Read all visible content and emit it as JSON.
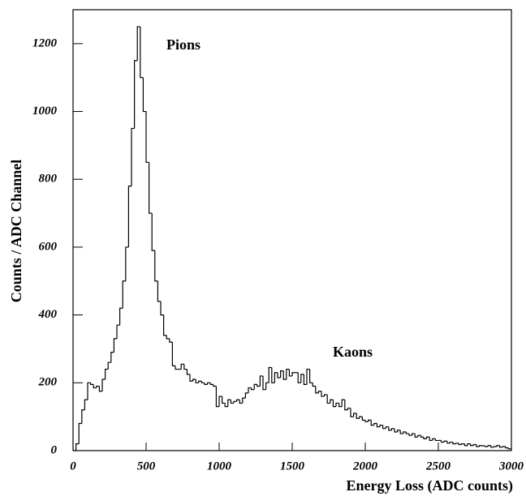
{
  "chart_data": {
    "type": "histogram",
    "x_label": "Energy Loss (ADC counts)",
    "y_label": "Counts / ADC Channel",
    "annotations": [
      {
        "text": "Pions"
      },
      {
        "text": "Kaons"
      }
    ],
    "color": "#000000",
    "bins": [
      0,
      20,
      40,
      60,
      80,
      100,
      120,
      140,
      160,
      180,
      200,
      220,
      240,
      260,
      280,
      300,
      320,
      340,
      360,
      380,
      400,
      420,
      440,
      460,
      480,
      500,
      520,
      540,
      560,
      580,
      600,
      620,
      640,
      660,
      680,
      700,
      720,
      740,
      760,
      780,
      800,
      820,
      840,
      860,
      880,
      900,
      920,
      940,
      960,
      980,
      1000,
      1020,
      1040,
      1060,
      1080,
      1100,
      1120,
      1140,
      1160,
      1180,
      1200,
      1220,
      1240,
      1260,
      1280,
      1300,
      1320,
      1340,
      1360,
      1380,
      1400,
      1420,
      1440,
      1460,
      1480,
      1500,
      1520,
      1540,
      1560,
      1580,
      1600,
      1620,
      1640,
      1660,
      1680,
      1700,
      1720,
      1740,
      1760,
      1780,
      1800,
      1820,
      1840,
      1860,
      1880,
      1900,
      1920,
      1940,
      1960,
      1980,
      2000,
      2020,
      2040,
      2060,
      2080,
      2100,
      2120,
      2140,
      2160,
      2180,
      2200,
      2220,
      2240,
      2260,
      2280,
      2300,
      2320,
      2340,
      2360,
      2380,
      2400,
      2420,
      2440,
      2460,
      2480,
      2500,
      2520,
      2540,
      2560,
      2580,
      2600,
      2620,
      2640,
      2660,
      2680,
      2700,
      2720,
      2740,
      2760,
      2780,
      2800,
      2820,
      2840,
      2860,
      2880,
      2900,
      2920,
      2940,
      2960,
      2980,
      3000
    ],
    "values": [
      0,
      20,
      80,
      120,
      150,
      200,
      195,
      185,
      190,
      175,
      210,
      240,
      260,
      290,
      330,
      370,
      420,
      500,
      600,
      780,
      950,
      1150,
      1250,
      1100,
      1000,
      850,
      700,
      590,
      500,
      440,
      400,
      340,
      330,
      320,
      250,
      240,
      240,
      255,
      240,
      225,
      205,
      210,
      200,
      205,
      200,
      195,
      200,
      195,
      190,
      130,
      160,
      140,
      130,
      150,
      140,
      145,
      150,
      140,
      155,
      170,
      185,
      180,
      195,
      190,
      220,
      180,
      200,
      245,
      200,
      230,
      215,
      235,
      210,
      240,
      220,
      230,
      230,
      200,
      225,
      195,
      240,
      200,
      190,
      170,
      175,
      160,
      165,
      140,
      150,
      130,
      140,
      130,
      150,
      120,
      125,
      100,
      110,
      95,
      100,
      90,
      85,
      90,
      75,
      80,
      70,
      75,
      65,
      70,
      60,
      65,
      55,
      60,
      50,
      55,
      50,
      45,
      50,
      40,
      45,
      40,
      35,
      40,
      30,
      35,
      30,
      30,
      25,
      28,
      22,
      25,
      20,
      22,
      18,
      20,
      15,
      20,
      15,
      18,
      12,
      15,
      14,
      12,
      15,
      10,
      12,
      15,
      10,
      12,
      8,
      5
    ],
    "xlim": [
      0,
      3000
    ],
    "xticks": [
      0,
      500,
      1000,
      1500,
      2000,
      2500,
      3000
    ],
    "ylim": [
      0,
      1300
    ],
    "yticks": [
      0,
      200,
      400,
      600,
      800,
      1000,
      1200
    ]
  }
}
